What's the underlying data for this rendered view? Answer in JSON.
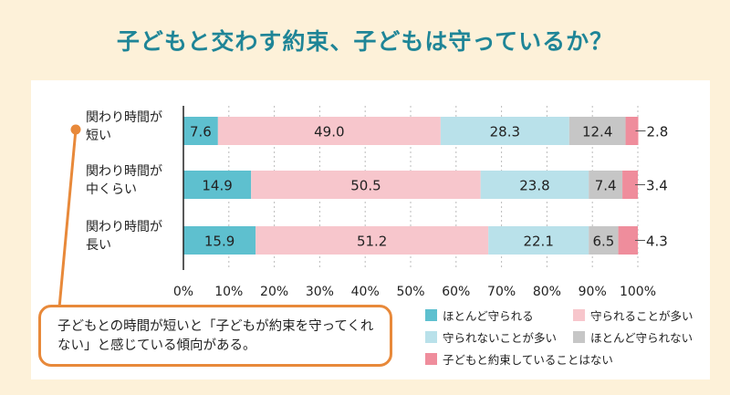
{
  "title": "子どもと交わす約束、子どもは守っているか？",
  "note": "子どもとの時間が短いと「子どもが約束を守ってくれない」と感じている傾向がある。",
  "colors": {
    "background": "#fdf1d9",
    "title": "#1f8597",
    "accent": "#e8893a",
    "series": [
      "#5ec0cf",
      "#f7c6cc",
      "#b9e1ea",
      "#c6c6c6",
      "#ef8d9c"
    ]
  },
  "chart_data": {
    "type": "bar",
    "orientation": "horizontal",
    "stacked": true,
    "categories": [
      [
        "関わり時間が",
        "短い"
      ],
      [
        "関わり時間が",
        "中くらい"
      ],
      [
        "関わり時間が",
        "長い"
      ]
    ],
    "series": [
      {
        "name": "ほとんど守られる",
        "values": [
          7.6,
          14.9,
          15.9
        ]
      },
      {
        "name": "守られることが多い",
        "values": [
          49.0,
          50.5,
          51.2
        ]
      },
      {
        "name": "守られないことが多い",
        "values": [
          28.3,
          23.8,
          22.1
        ]
      },
      {
        "name": "ほとんど守られない",
        "values": [
          12.4,
          7.4,
          6.5
        ]
      },
      {
        "name": "子どもと約束していることはない",
        "values": [
          2.8,
          3.4,
          4.3
        ]
      }
    ],
    "value_labels": [
      [
        "7.6",
        "49.0",
        "28.3",
        "12.4",
        "2.8"
      ],
      [
        "14.9",
        "50.5",
        "23.8",
        "7.4",
        "3.4"
      ],
      [
        "15.9",
        "51.2",
        "22.1",
        "6.5",
        "4.3"
      ]
    ],
    "x_ticks": [
      "0%",
      "10%",
      "20%",
      "30%",
      "40%",
      "50%",
      "60%",
      "70%",
      "80%",
      "90%",
      "100%"
    ],
    "xlim": [
      0,
      100
    ],
    "grid": true,
    "legend": "bottom-right"
  }
}
